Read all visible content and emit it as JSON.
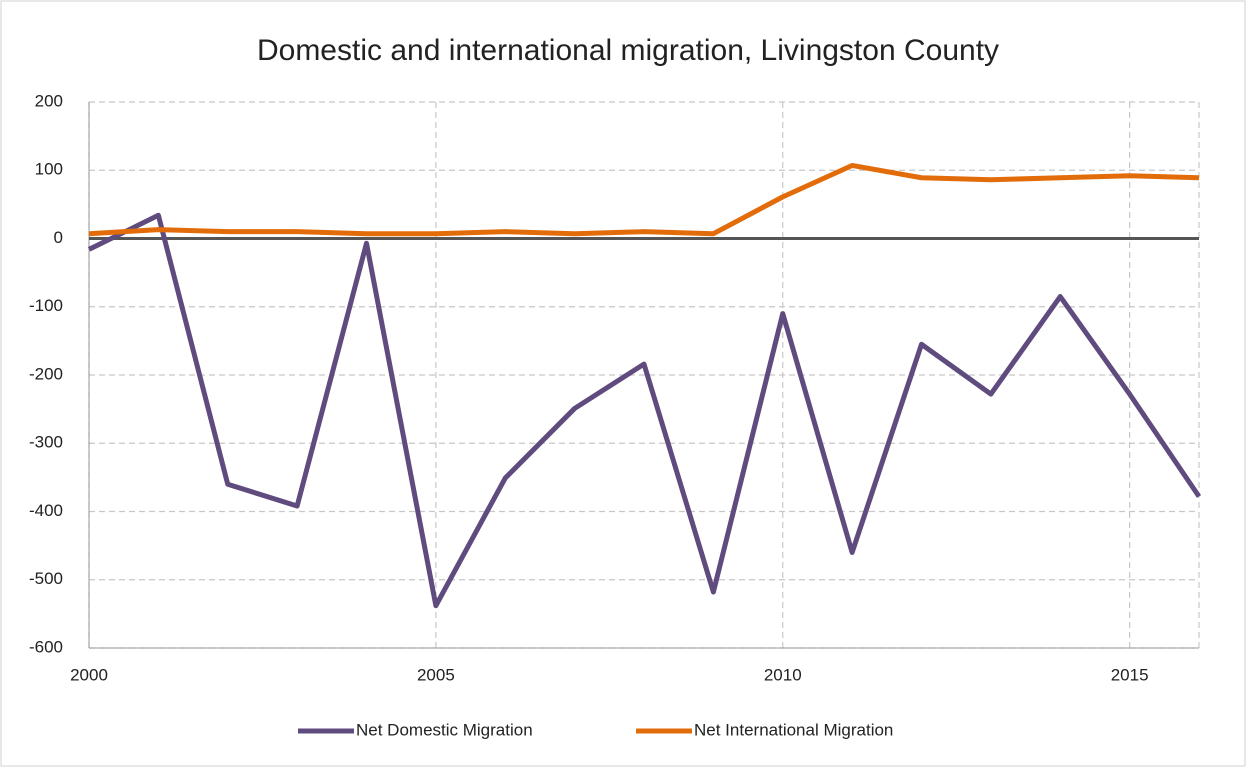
{
  "chart_data": {
    "type": "line",
    "title": "Domestic and international migration, Livingston County",
    "x": [
      2000,
      2001,
      2002,
      2003,
      2004,
      2005,
      2006,
      2007,
      2008,
      2009,
      2010,
      2011,
      2012,
      2013,
      2014,
      2015,
      2016
    ],
    "series": [
      {
        "name": "Net Domestic Migration",
        "color": "#5f4b7e",
        "values": [
          -16,
          34,
          -360,
          -392,
          -7,
          -538,
          -351,
          -249,
          -184,
          -518,
          -110,
          -460,
          -155,
          -228,
          -85,
          -228,
          -378
        ]
      },
      {
        "name": "Net International Migration",
        "color": "#e36c0a",
        "values": [
          7,
          13,
          10,
          10,
          7,
          7,
          10,
          7,
          10,
          7,
          61,
          107,
          89,
          86,
          89,
          92,
          89
        ]
      }
    ],
    "xlim": [
      2000,
      2016
    ],
    "xticks": [
      2000,
      2005,
      2010,
      2015
    ],
    "ylim": [
      -600,
      200
    ],
    "yticks": [
      -600,
      -500,
      -400,
      -300,
      -200,
      -100,
      0,
      100,
      200
    ],
    "grid": true,
    "legend": "bottom"
  }
}
